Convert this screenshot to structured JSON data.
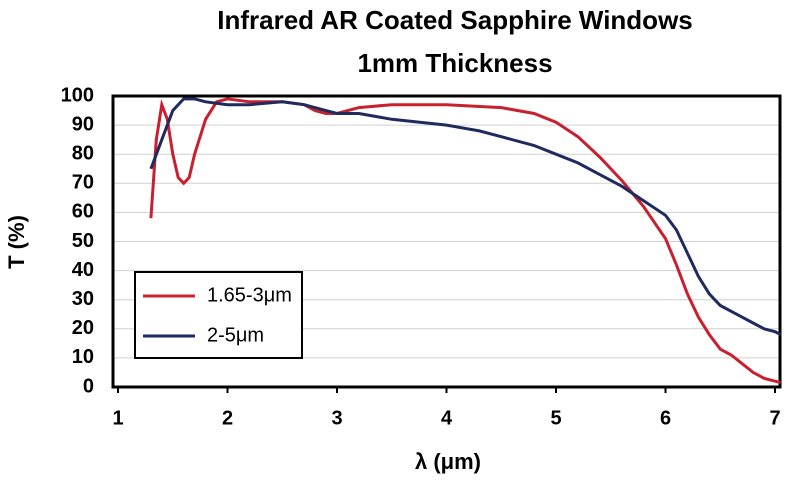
{
  "chart_data": {
    "type": "line",
    "title": [
      "Infrared AR Coated Sapphire Windows",
      "1mm Thickness"
    ],
    "x_label": "λ (μm)",
    "y_label": "T (%)",
    "xlim": [
      1,
      7
    ],
    "xticks": [
      1,
      2,
      3,
      4,
      5,
      6,
      7
    ],
    "ylim": [
      0,
      100
    ],
    "yticks": [
      0,
      10,
      20,
      30,
      40,
      50,
      60,
      70,
      80,
      90,
      100
    ],
    "grid": true,
    "legend": "lower-left",
    "series": [
      {
        "name": "1.65-3μm",
        "color": "#c8202f",
        "x": [
          1.3,
          1.35,
          1.4,
          1.45,
          1.5,
          1.55,
          1.6,
          1.65,
          1.7,
          1.8,
          1.9,
          2.0,
          2.2,
          2.5,
          2.7,
          2.8,
          2.9,
          3.0,
          3.2,
          3.5,
          4.0,
          4.5,
          4.8,
          5.0,
          5.2,
          5.4,
          5.6,
          5.8,
          6.0,
          6.1,
          6.2,
          6.3,
          6.4,
          6.5,
          6.6,
          6.7,
          6.8,
          6.9,
          7.0,
          7.05
        ],
        "values": [
          58,
          85,
          97,
          92,
          80,
          72,
          70,
          72,
          80,
          92,
          98,
          99,
          98,
          98,
          97,
          95,
          94,
          94,
          96,
          97,
          97,
          96,
          94,
          91,
          86,
          79,
          71,
          62,
          51,
          42,
          32,
          24,
          18,
          13,
          11,
          8,
          5,
          3,
          2,
          1.5
        ]
      },
      {
        "name": "2-5μm",
        "color": "#1f2a5e",
        "x": [
          1.3,
          1.4,
          1.5,
          1.6,
          1.7,
          1.8,
          2.0,
          2.2,
          2.5,
          2.7,
          2.9,
          3.0,
          3.2,
          3.5,
          4.0,
          4.3,
          4.5,
          4.8,
          5.0,
          5.2,
          5.4,
          5.6,
          5.8,
          6.0,
          6.1,
          6.2,
          6.3,
          6.4,
          6.5,
          6.6,
          6.7,
          6.8,
          6.9,
          7.0,
          7.05
        ],
        "values": [
          75,
          85,
          95,
          99,
          99,
          98,
          97,
          97,
          98,
          97,
          95,
          94,
          94,
          92,
          90,
          88,
          86,
          83,
          80,
          77,
          73,
          69,
          64,
          59,
          54,
          46,
          38,
          32,
          28,
          26,
          24,
          22,
          20,
          19,
          18
        ]
      }
    ]
  }
}
